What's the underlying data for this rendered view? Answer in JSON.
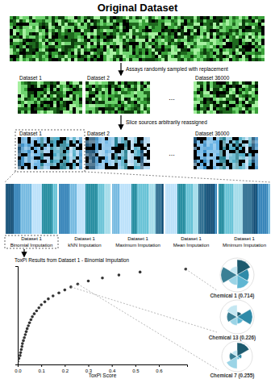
{
  "title": "Original Dataset",
  "steps": [
    "Assays randomly sampled with replacement",
    "Slice sources arbitrarily reassigned"
  ],
  "datasets": [
    "Dataset 1",
    "Dataset 2",
    "...",
    "Dataset 36000"
  ],
  "imputations": [
    [
      "Dataset 1",
      "Binomial Imputation"
    ],
    [
      "Dataset 1",
      "kNN Imputation"
    ],
    [
      "Dataset 1",
      "Maximum Imputation"
    ],
    [
      "Dataset 1",
      "Mean Imputation"
    ],
    [
      "Dataset 1",
      "Minimum Imputation"
    ]
  ],
  "chart_data": {
    "type": "scatter",
    "title": "ToxPi Results from Dataset 1 - Binomial Imputation",
    "x_label": "ToxPi Score",
    "x": [
      0,
      0.005,
      0.01,
      0.012,
      0.015,
      0.018,
      0.02,
      0.024,
      0.028,
      0.032,
      0.036,
      0.04,
      0.045,
      0.05,
      0.056,
      0.062,
      0.07,
      0.08,
      0.09,
      0.1,
      0.115,
      0.13,
      0.15,
      0.175,
      0.2,
      0.226,
      0.255,
      0.3,
      0.36,
      0.43,
      0.52,
      0.714
    ],
    "values": [
      1,
      2,
      3,
      4,
      5,
      6,
      7,
      8,
      9,
      10,
      11,
      12,
      13,
      14,
      15,
      16,
      17,
      18,
      19,
      20,
      21,
      22,
      23,
      24,
      25,
      26,
      27,
      28,
      29,
      30,
      31,
      32
    ],
    "xlim": [
      0,
      0.72
    ],
    "xticks": [
      {
        "value": 0,
        "label": "0.0"
      },
      0.1,
      0.2,
      0.3,
      0.4,
      0.5,
      0.6
    ],
    "ylim": [
      0,
      33
    ],
    "tick_labels": "x",
    "marker": "circle",
    "color": "#333333",
    "annotations": [
      {
        "text": "Chemical 1 (0.714)",
        "x": 0.714,
        "slices": [
          0.9,
          0.7,
          0.8,
          0.6,
          0.95,
          0.5
        ],
        "colors": [
          "#1d5a6e",
          "#2f8aa8",
          "#5fb6d2",
          "#9bd4e6",
          "#3a7f95",
          "#c4e7f2"
        ]
      },
      {
        "text": "Chemical 13 (0.226)",
        "x": 0.226,
        "slices": [
          0.3,
          0.9,
          0.4,
          0.5,
          0.6,
          0.7
        ],
        "colors": [
          "#1d5a6e",
          "#2f8aa8",
          "#5fb6d2",
          "#9bd4e6",
          "#3a7f95",
          "#c4e7f2"
        ]
      },
      {
        "text": "Chemical 7 (0.255)",
        "x": 0.255,
        "slices": [
          0.9,
          0.3,
          0.2,
          0.8,
          0.5,
          0.4
        ],
        "colors": [
          "#1d5a6e",
          "#2f8aa8",
          "#5fb6d2",
          "#9bd4e6",
          "#3a7f95",
          "#c4e7f2"
        ]
      }
    ]
  }
}
